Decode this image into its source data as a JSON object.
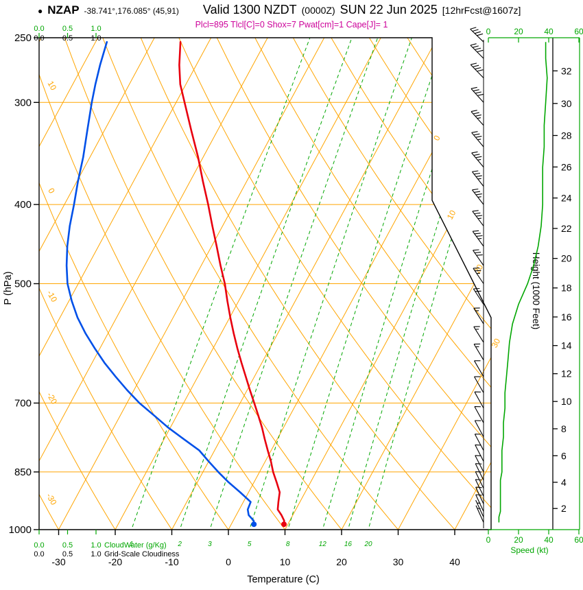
{
  "header": {
    "bullet": "●",
    "station": "NZAP",
    "coords": "-38.741°,176.085° (45,91)",
    "valid_label": "Valid 1300 NZDT",
    "valid_utc": "(0000Z)",
    "valid_date": "SUN 22 Jun 2025",
    "fcst_tag": "[12hrFcst@1607z]",
    "indices": "Plcl=895 Tlcl[C]=0 Shox=7 Pwat[cm]=1 Cape[J]= 1"
  },
  "axes": {
    "pressure_label": "P (hPa)",
    "pressure_ticks": [
      250,
      300,
      400,
      500,
      700,
      850,
      1000
    ],
    "temperature_label": "Temperature (C)",
    "temperature_ticks": [
      -30,
      -20,
      -10,
      0,
      10,
      20,
      30,
      40
    ],
    "height_label": "Height (1000 Feet)",
    "height_ticks_kft": [
      2,
      4,
      6,
      8,
      10,
      12,
      14,
      16,
      18,
      20,
      22,
      24,
      26,
      28,
      30,
      32
    ],
    "speed_label": "Speed (kt)",
    "speed_ticks": [
      0,
      20,
      40,
      60
    ],
    "cloudwater_label": "CloudWater (g/Kg)",
    "cloudiness_label": "Grid-Scale Cloudiness",
    "cloud_scale_ticks": [
      "0.0",
      "0.5",
      "1.0"
    ],
    "isotherm_edge_labels": [
      0,
      10,
      20,
      30
    ],
    "adiabat_edge_labels": [
      10,
      0,
      -10,
      -20,
      -30
    ],
    "mixing_ratio_lines": [
      1,
      2,
      3,
      5,
      8,
      12,
      16,
      20
    ]
  },
  "chart_data": {
    "type": "line",
    "subtype": "skewt-logp-sounding",
    "title": "NZAP -38.741°,176.085° (45,91) Valid 1300 NZDT (0000Z) SUN 22 Jun 2025 [12hrFcst@1607z]",
    "pressure_range_hpa": [
      1000,
      250
    ],
    "sounding_columns": [
      "pressure_hpa",
      "temperature_c",
      "dewpoint_c"
    ],
    "sounding": [
      [
        985,
        9.3,
        4.0
      ],
      [
        975,
        9.0,
        3.6
      ],
      [
        960,
        8.0,
        2.2
      ],
      [
        945,
        6.8,
        1.5
      ],
      [
        925,
        6.2,
        1.3
      ],
      [
        900,
        5.5,
        -1.5
      ],
      [
        875,
        4.0,
        -4.5
      ],
      [
        850,
        2.4,
        -7.3
      ],
      [
        825,
        1.0,
        -10.0
      ],
      [
        800,
        -0.6,
        -12.7
      ],
      [
        775,
        -2.2,
        -16.5
      ],
      [
        750,
        -3.8,
        -20.4
      ],
      [
        725,
        -5.6,
        -24.0
      ],
      [
        700,
        -7.5,
        -27.8
      ],
      [
        675,
        -9.5,
        -31.2
      ],
      [
        650,
        -11.5,
        -34.5
      ],
      [
        625,
        -13.6,
        -37.8
      ],
      [
        600,
        -15.7,
        -40.9
      ],
      [
        575,
        -17.8,
        -44.0
      ],
      [
        550,
        -19.9,
        -46.9
      ],
      [
        525,
        -22.0,
        -49.5
      ],
      [
        500,
        -24.1,
        -51.9
      ],
      [
        475,
        -26.6,
        -53.8
      ],
      [
        450,
        -29.1,
        -55.5
      ],
      [
        425,
        -31.8,
        -57.0
      ],
      [
        400,
        -34.6,
        -58.3
      ],
      [
        375,
        -37.7,
        -59.8
      ],
      [
        350,
        -40.9,
        -61.2
      ],
      [
        325,
        -44.6,
        -63.0
      ],
      [
        300,
        -48.5,
        -64.9
      ],
      [
        285,
        -51.0,
        -66.0
      ],
      [
        270,
        -53.0,
        -67.0
      ],
      [
        253,
        -55.0,
        -68.0
      ]
    ],
    "wind_columns": [
      "pressure_hpa",
      "speed_kt",
      "direction_deg"
    ],
    "wind_kt": [
      [
        253,
        38,
        314
      ],
      [
        265,
        38,
        315
      ],
      [
        280,
        39,
        316
      ],
      [
        300,
        38,
        318
      ],
      [
        320,
        37,
        318
      ],
      [
        340,
        37,
        320
      ],
      [
        360,
        36,
        320
      ],
      [
        380,
        36,
        322
      ],
      [
        400,
        36,
        322
      ],
      [
        425,
        35,
        323
      ],
      [
        450,
        33,
        324
      ],
      [
        475,
        30,
        325
      ],
      [
        500,
        26,
        326
      ],
      [
        530,
        20,
        327
      ],
      [
        560,
        16,
        328
      ],
      [
        590,
        14,
        328
      ],
      [
        620,
        13,
        329
      ],
      [
        650,
        12,
        330
      ],
      [
        680,
        11,
        330
      ],
      [
        710,
        11,
        331
      ],
      [
        740,
        10,
        331
      ],
      [
        770,
        10,
        332
      ],
      [
        800,
        9,
        332
      ],
      [
        825,
        9,
        333
      ],
      [
        850,
        9,
        333
      ],
      [
        870,
        8,
        334
      ],
      [
        890,
        8,
        334
      ],
      [
        910,
        8,
        334
      ],
      [
        930,
        8,
        335
      ],
      [
        950,
        8,
        335
      ],
      [
        965,
        7,
        335
      ],
      [
        980,
        7,
        336
      ]
    ],
    "colors": {
      "temperature": "#e8000f",
      "dewpoint": "#0050e8",
      "grid": "#ffa500",
      "moisture": "#00a600",
      "indices": "#cc0099",
      "axis": "#000000"
    }
  }
}
